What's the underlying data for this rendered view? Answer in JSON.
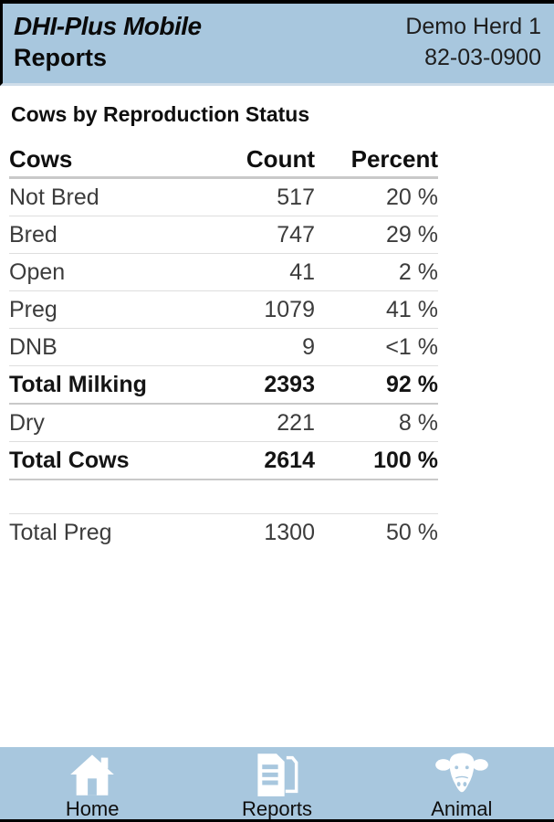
{
  "header": {
    "app_title": "DHI-Plus Mobile",
    "page_title": "Reports",
    "herd_name": "Demo Herd 1",
    "herd_id": "82-03-0900"
  },
  "report": {
    "title": "Cows by Reproduction Status",
    "table": {
      "columns": [
        "Cows",
        "Count",
        "Percent"
      ],
      "rows": [
        {
          "label": "Not Bred",
          "count": "517",
          "percent": "20 %",
          "bold": false
        },
        {
          "label": "Bred",
          "count": "747",
          "percent": "29 %",
          "bold": false
        },
        {
          "label": "Open",
          "count": "41",
          "percent": "2 %",
          "bold": false
        },
        {
          "label": "Preg",
          "count": "1079",
          "percent": "41 %",
          "bold": false
        },
        {
          "label": "DNB",
          "count": "9",
          "percent": "<1 %",
          "bold": false
        },
        {
          "label": "Total Milking",
          "count": "2393",
          "percent": "92 %",
          "bold": true
        },
        {
          "label": "Dry",
          "count": "221",
          "percent": "8 %",
          "bold": false
        },
        {
          "label": "Total Cows",
          "count": "2614",
          "percent": "100 %",
          "bold": true
        }
      ],
      "summary_row": {
        "label": "Total Preg",
        "count": "1300",
        "percent": "50 %"
      }
    }
  },
  "nav": {
    "items": [
      {
        "label": "Home",
        "icon": "home-icon"
      },
      {
        "label": "Reports",
        "icon": "reports-icon"
      },
      {
        "label": "Animal",
        "icon": "animal-icon"
      }
    ]
  },
  "colors": {
    "bar_blue": "#a8c7de",
    "separator_gray": "#c9c9c9",
    "text_dark": "#141414"
  }
}
